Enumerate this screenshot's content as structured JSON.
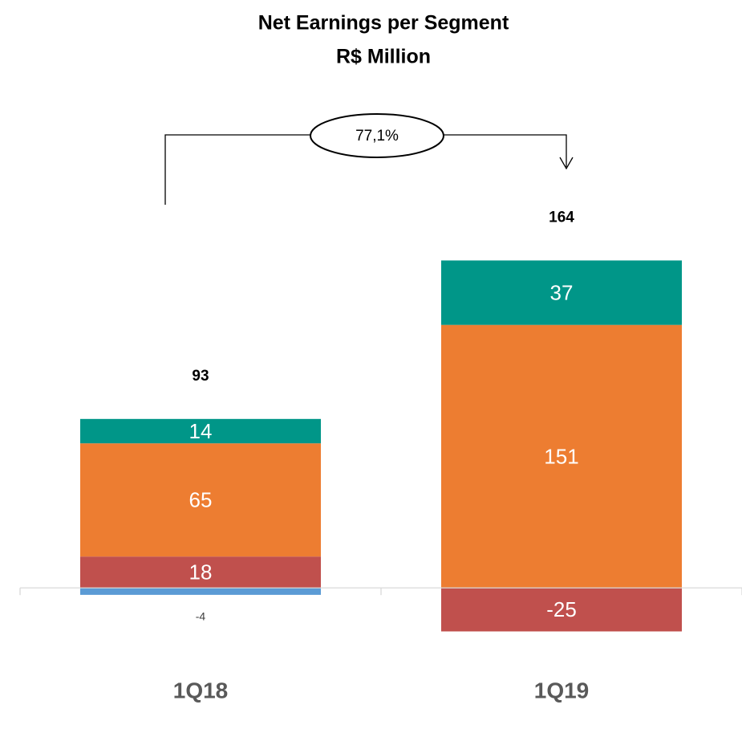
{
  "chart_data": {
    "type": "stacked-bar",
    "title": "Net Earnings per Segment",
    "subtitle": "R$ Million",
    "categories": [
      "1Q18",
      "1Q19"
    ],
    "series": [
      {
        "color": "#5b9bd5",
        "values": [
          -4,
          null
        ]
      },
      {
        "color": "#c0504d",
        "values": [
          18,
          -25
        ]
      },
      {
        "color": "#ed7d31",
        "values": [
          65,
          151
        ]
      },
      {
        "color": "#009688",
        "values": [
          14,
          37
        ]
      }
    ],
    "totals": [
      93,
      164
    ],
    "annotation": "77,1%",
    "ylim": [
      -40,
      220
    ]
  }
}
